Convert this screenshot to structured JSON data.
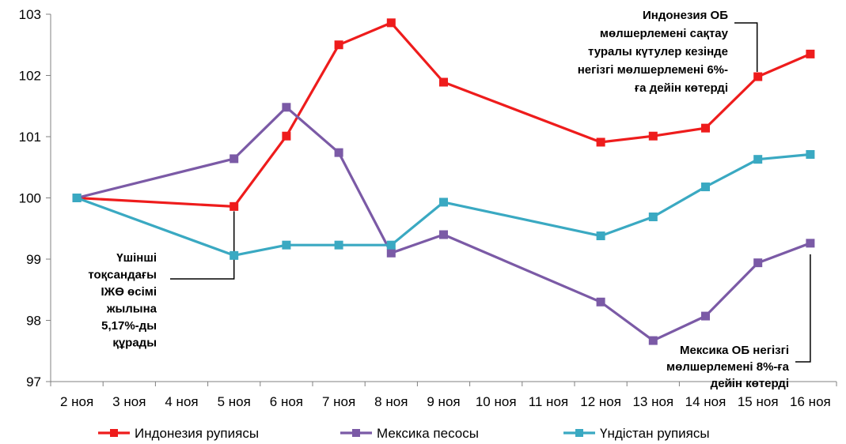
{
  "chart_data": {
    "type": "line",
    "title": "",
    "xlabel": "",
    "ylabel": "",
    "ylim": [
      97,
      103
    ],
    "yticks": [
      "97",
      "98",
      "99",
      "100",
      "101",
      "102",
      "103"
    ],
    "grid": false,
    "legend_position": "bottom",
    "categories": [
      "2 ноя",
      "3 ноя",
      "4 ноя",
      "5 ноя",
      "6 ноя",
      "7 ноя",
      "8 ноя",
      "9 ноя",
      "10 ноя",
      "11 ноя",
      "12 ноя",
      "13 ноя",
      "14 ноя",
      "15 ноя",
      "16 ноя"
    ],
    "series": [
      {
        "name": "Индонезия рупиясы",
        "color": "#ee1c1c",
        "values": [
          100,
          null,
          null,
          99.86,
          101.01,
          102.5,
          102.86,
          101.89,
          null,
          null,
          100.91,
          101.01,
          101.14,
          101.98,
          102.35
        ]
      },
      {
        "name": "Мексика песосы",
        "color": "#7b5aa6",
        "values": [
          100,
          null,
          null,
          100.64,
          101.48,
          100.74,
          99.1,
          99.4,
          null,
          null,
          98.3,
          97.67,
          98.07,
          98.94,
          99.26
        ]
      },
      {
        "name": "Үндістан рупиясы",
        "color": "#3aa9c2",
        "values": [
          100,
          null,
          null,
          99.06,
          99.23,
          99.23,
          99.23,
          99.93,
          null,
          null,
          99.38,
          99.69,
          100.18,
          100.63,
          100.71
        ]
      }
    ],
    "annotations": [
      {
        "lines": [
          "Индонезия ОБ",
          "мөлшерлемені сақтау",
          "туралы күтулер кезінде",
          "негізгі мөлшерлемені 6%-",
          "ға дейін көтерді"
        ]
      },
      {
        "lines": [
          "Үшінші",
          "тоқсандағы",
          "ІЖӨ өсімі",
          "жылына",
          "5,17%-ды",
          "құрады"
        ]
      },
      {
        "lines": [
          "Мексика ОБ негізгі",
          "мөлшерлемені 8%-ға",
          "дейін көтерді"
        ]
      }
    ]
  }
}
